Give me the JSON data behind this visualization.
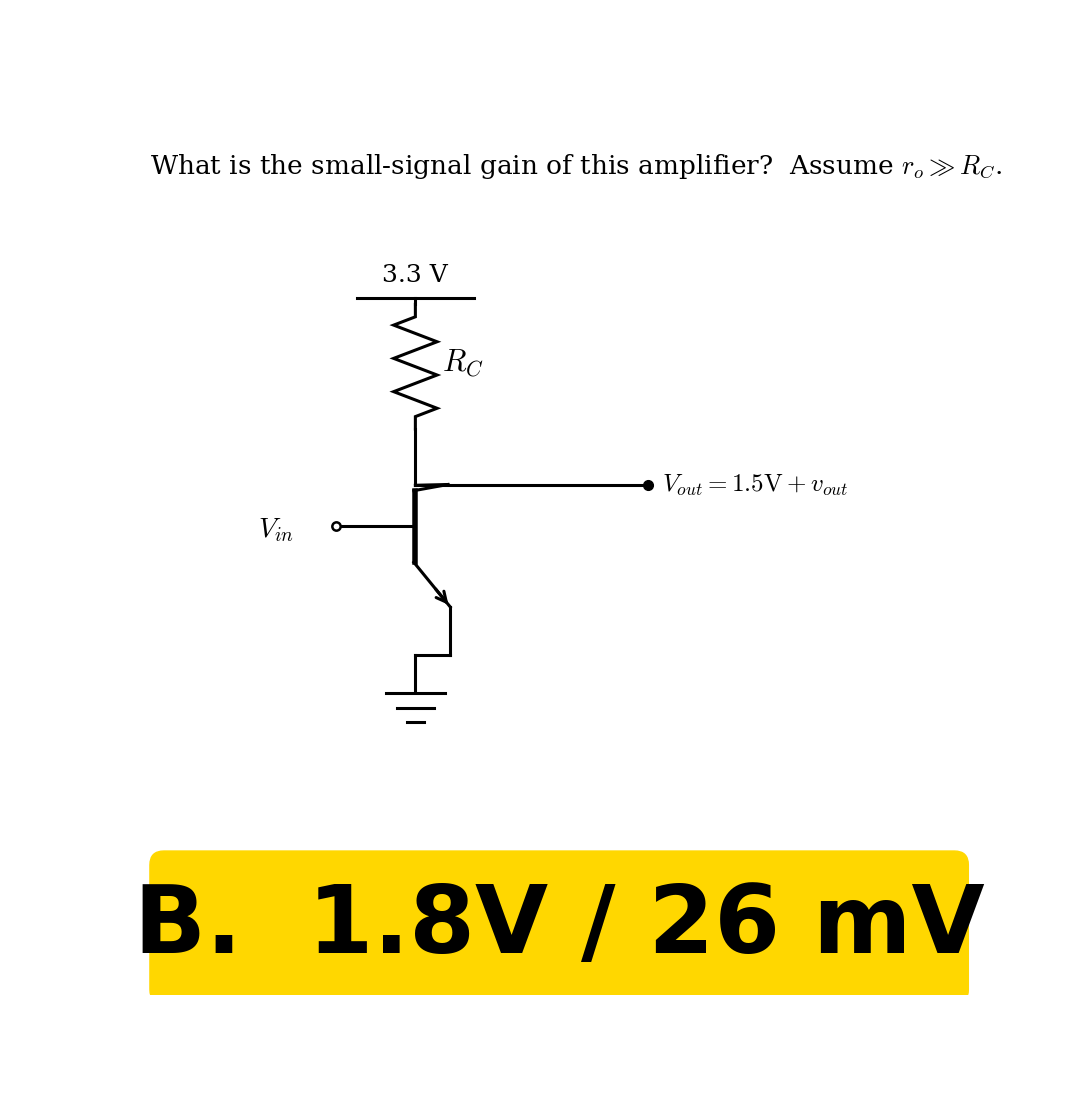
{
  "title_part1": "What is the small-signal gain of this amplifier?  Assume ",
  "title_ro": "r",
  "title_o_sub": "o",
  "title_part2": " >> ",
  "title_rc": "R",
  "title_c_sub": "C",
  "title_fontsize": 19,
  "answer_text": "B.  1.8V / 26 mV",
  "answer_fontsize": 68,
  "answer_bg_color": "#FFD700",
  "answer_text_color": "#000000",
  "vdd_label": "3.3 V",
  "rc_label_R": "R",
  "rc_label_C": "C",
  "vout_label": "$V_{out} = 1.5\\mathrm{V} + v_{out}$",
  "vin_label_V": "V",
  "vin_label_in": "in",
  "bg_color": "#ffffff",
  "line_color": "#000000",
  "circuit_lw": 2.2
}
